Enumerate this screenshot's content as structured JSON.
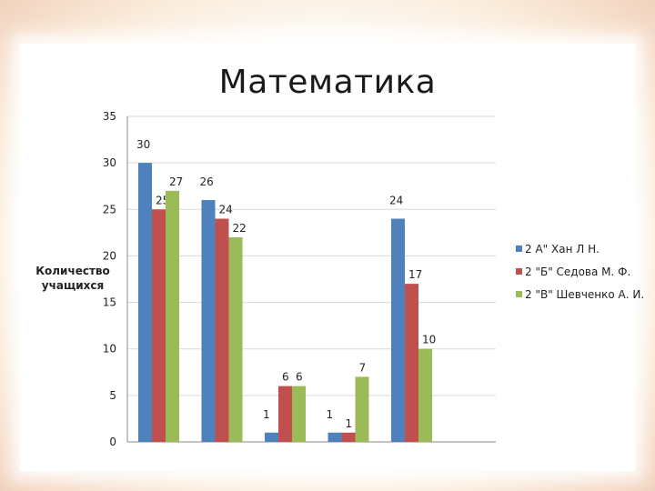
{
  "colors": {
    "series": [
      "#4f81bd",
      "#c0504d",
      "#9bbb59"
    ],
    "grid": "#d9d9d9",
    "axis": "#888888"
  },
  "chart_data": {
    "type": "bar",
    "title": "Математика",
    "xlabel": "",
    "ylabel": "Количество учащихся",
    "ylim": [
      0,
      35
    ],
    "yticks": [
      0,
      5,
      10,
      15,
      20,
      25,
      30,
      35
    ],
    "categories": [
      "",
      "",
      "",
      "",
      ""
    ],
    "grid": true,
    "legend_position": "right",
    "series": [
      {
        "name": "2 А\" Хан Л  Н.",
        "values": [
          30,
          26,
          1,
          1,
          24
        ]
      },
      {
        "name": "2 \"Б\" Седова  М. Ф.",
        "values": [
          25,
          24,
          6,
          1,
          17
        ]
      },
      {
        "name": "2 \"В\" Шевченко  А. И.",
        "values": [
          27,
          22,
          6,
          7,
          10
        ]
      }
    ]
  }
}
